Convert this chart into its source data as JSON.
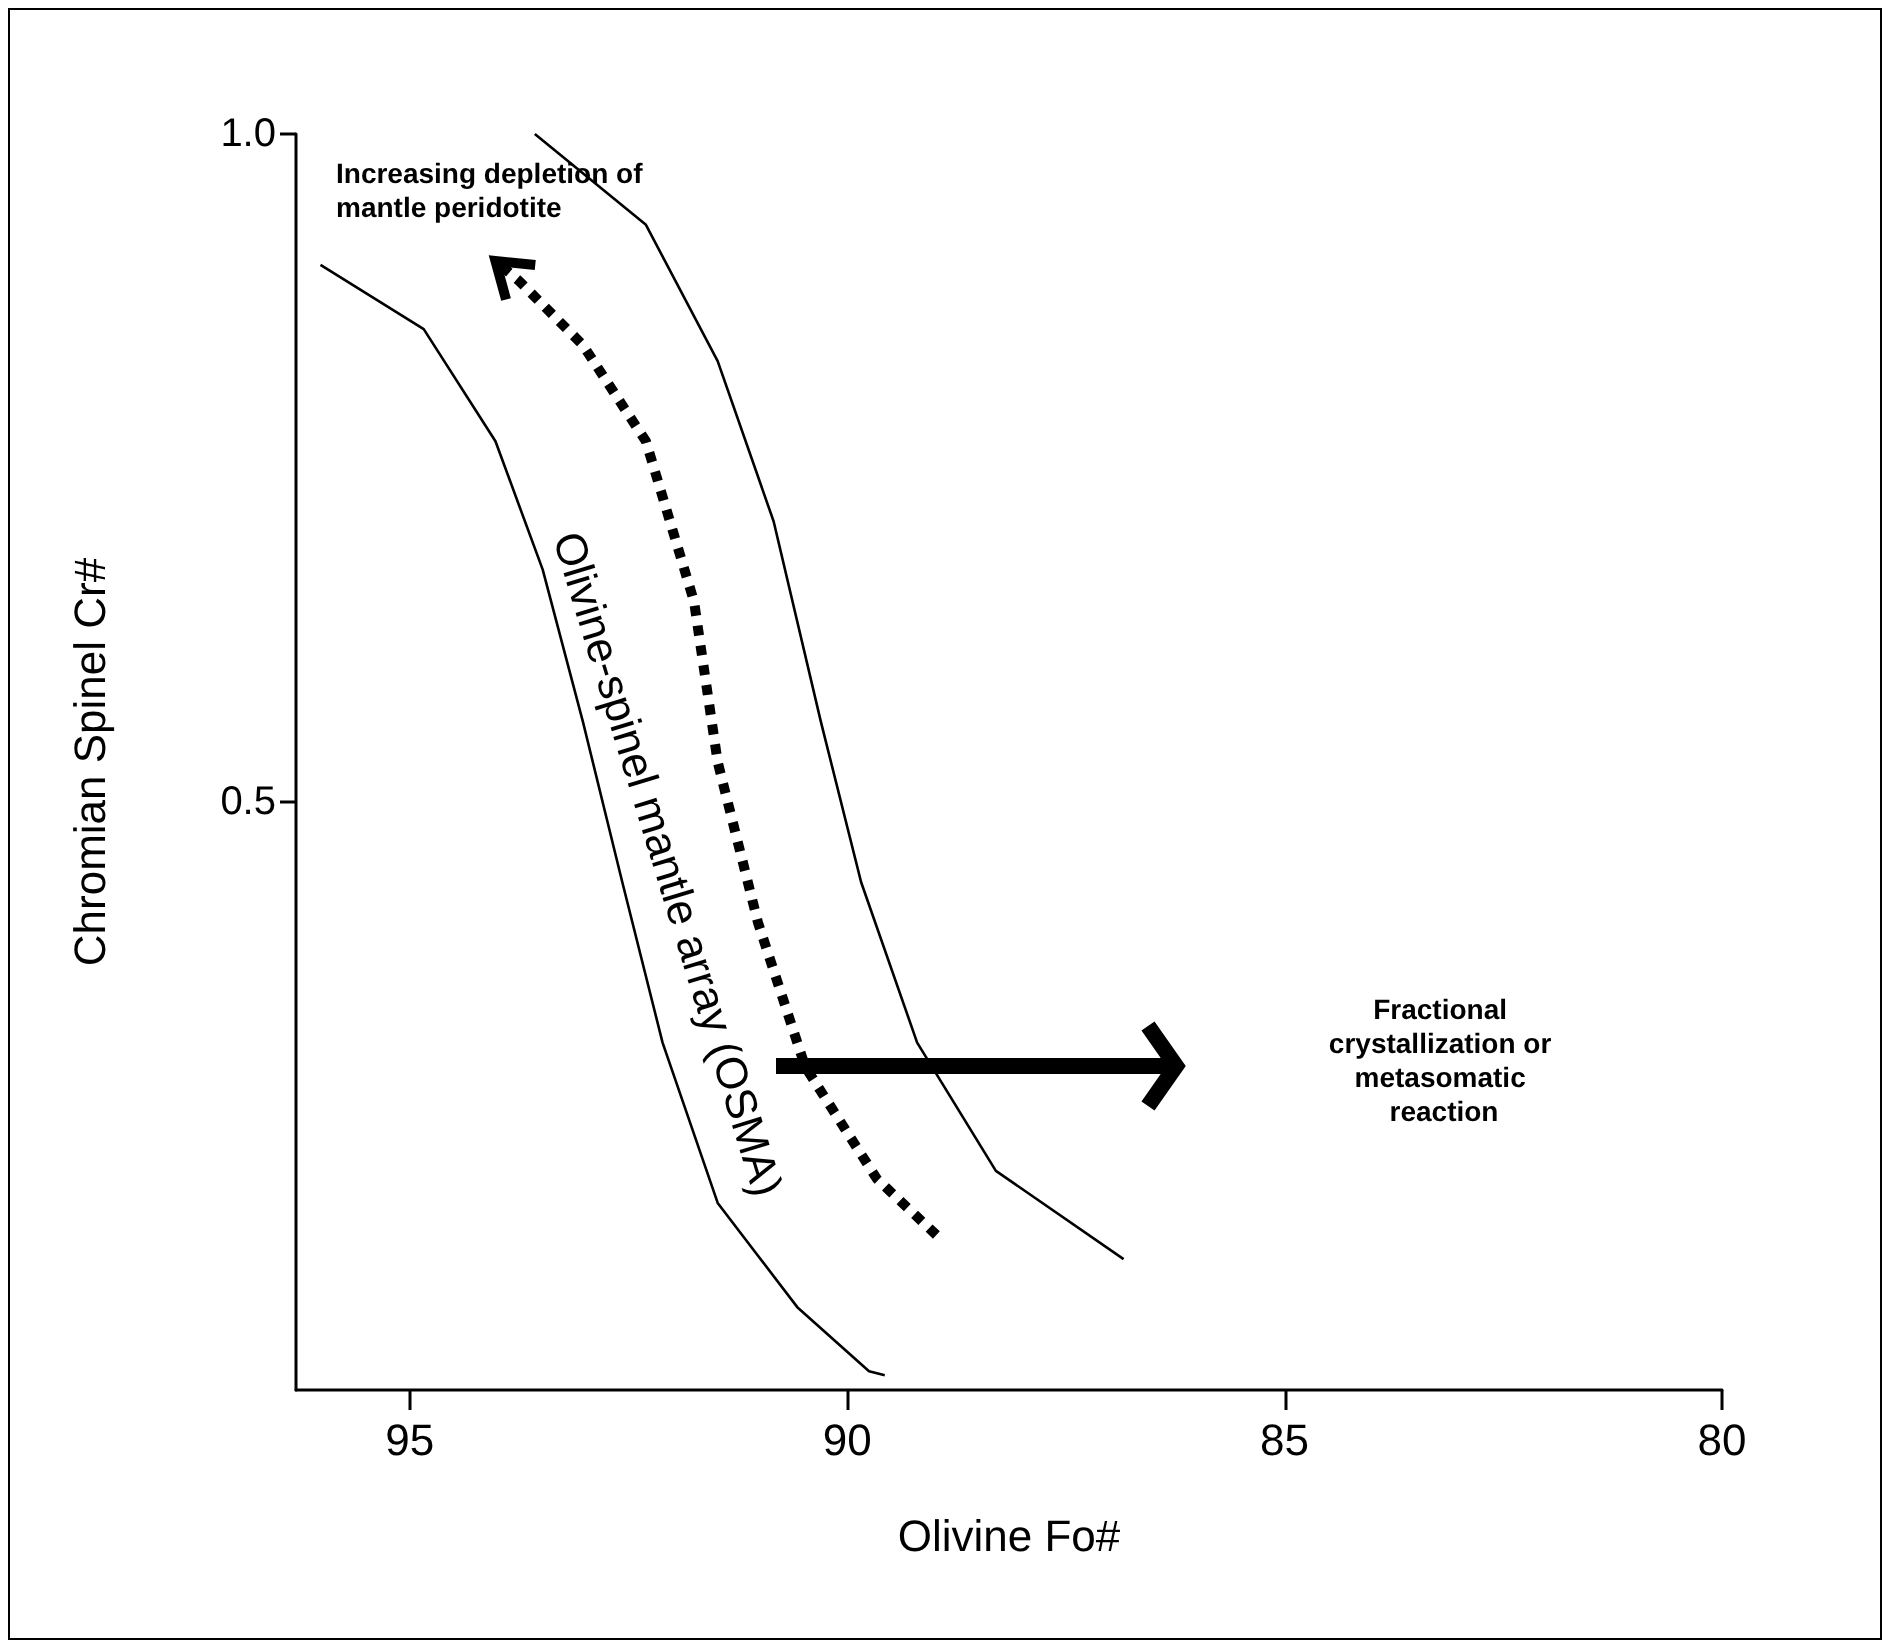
{
  "chart_data": {
    "type": "line",
    "xlabel": "Olivine Fo#",
    "ylabel": "Chromian Spinel Cr#",
    "xlim": [
      96.3,
      80
    ],
    "xticks": [
      95,
      90,
      85,
      80
    ],
    "ylim": [
      0.06,
      1.0
    ],
    "yticks": [
      {
        "value": 0.5,
        "label": "0.5"
      },
      {
        "value": 1.0,
        "label": "1.0"
      }
    ],
    "marker": "none",
    "line_style": "solid",
    "annotations": [
      "Increasing depletion of mantle peridotite",
      "Olivine-spinel mantle array (OSMA)",
      "Fractional crystallization or metasomatic reaction"
    ],
    "series": [
      {
        "color": "#000000",
        "x": [
          96.02,
          94.84,
          94.02,
          93.48,
          93.02,
          92.57,
          92.11,
          91.48,
          90.57,
          89.75,
          89.57
        ],
        "values": [
          0.902,
          0.854,
          0.77,
          0.674,
          0.56,
          0.44,
          0.32,
          0.2,
          0.122,
          0.074,
          0.071
        ]
      },
      {
        "color": "#000000",
        "x": [
          93.57,
          92.3,
          91.48,
          90.84,
          90.3,
          89.84,
          89.2,
          88.3,
          86.84
        ],
        "values": [
          1.0,
          0.932,
          0.83,
          0.71,
          0.56,
          0.44,
          0.32,
          0.224,
          0.158
        ]
      },
      {
        "color": "#000000",
        "line_style": "dotted",
        "x": [
          88.98,
          89.66,
          90.48,
          91.02,
          91.48,
          91.75,
          92.3,
          93.02,
          93.75,
          94.02
        ],
        "values": [
          0.176,
          0.218,
          0.302,
          0.41,
          0.53,
          0.65,
          0.77,
          0.842,
          0.89,
          0.905
        ]
      }
    ]
  }
}
